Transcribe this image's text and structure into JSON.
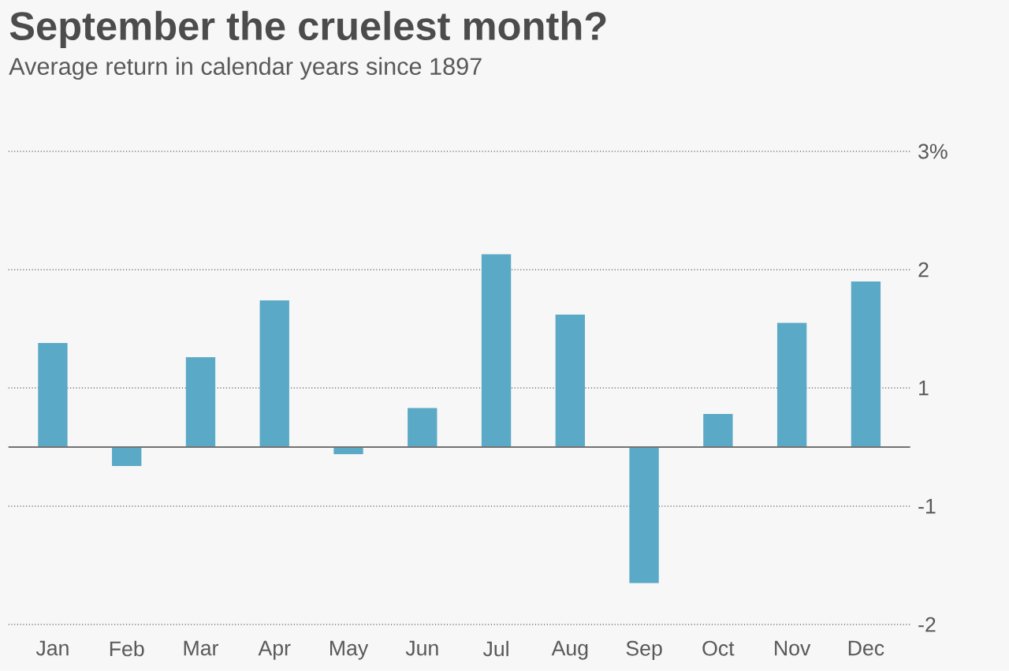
{
  "chart_data": {
    "type": "bar",
    "title": "September the cruelest month?",
    "subtitle": "Average return in calendar years since 1897",
    "categories": [
      "Jan",
      "Feb",
      "Mar",
      "Apr",
      "May",
      "Jun",
      "Jul",
      "Aug",
      "Sep",
      "Oct",
      "Nov",
      "Dec"
    ],
    "values": [
      0.88,
      -0.16,
      0.76,
      1.24,
      -0.06,
      0.33,
      1.63,
      1.12,
      -1.15,
      0.28,
      1.05,
      1.4
    ],
    "color": "#5aa9c6",
    "ylim": [
      -1.5,
      2.5
    ],
    "yticks": [
      {
        "value": 2.5,
        "label": "3%"
      },
      {
        "value": 1.5,
        "label": "2"
      },
      {
        "value": 0.5,
        "label": "1"
      },
      {
        "value": -0.5,
        "label": "-1"
      },
      {
        "value": -1.5,
        "label": "-2"
      }
    ],
    "grid": "y"
  }
}
